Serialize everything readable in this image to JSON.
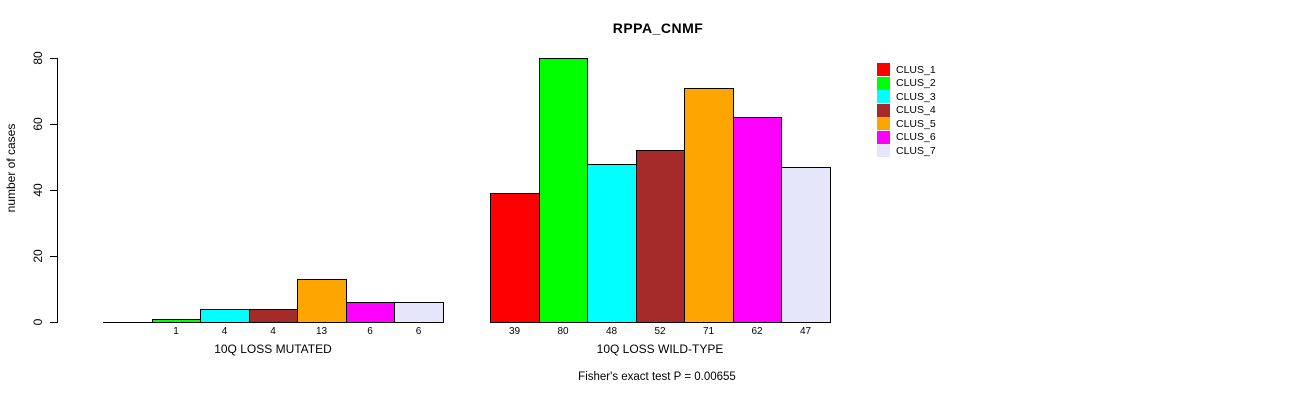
{
  "chart_data": {
    "type": "bar",
    "title": "RPPA_CNMF",
    "ylabel": "number of cases",
    "xlabel": "",
    "ylim": [
      0,
      80
    ],
    "yticks": [
      0,
      20,
      40,
      60,
      80
    ],
    "grid": false,
    "legend_position": "right-outside",
    "legend": [
      {
        "label": "CLUS_1",
        "color": "#ff0000"
      },
      {
        "label": "CLUS_2",
        "color": "#00ff00"
      },
      {
        "label": "CLUS_3",
        "color": "#00ffff"
      },
      {
        "label": "CLUS_4",
        "color": "#a52a2a"
      },
      {
        "label": "CLUS_5",
        "color": "#ffa500"
      },
      {
        "label": "CLUS_6",
        "color": "#ff00ff"
      },
      {
        "label": "CLUS_7",
        "color": "#e6e6fa"
      }
    ],
    "series_note": "each group shows one bar per cluster CLUS_1..CLUS_7",
    "groups": [
      {
        "label": "10Q LOSS MUTATED",
        "values": [
          0,
          1,
          4,
          4,
          13,
          6,
          6
        ],
        "bar_labels": [
          "",
          "1",
          "4",
          "4",
          "13",
          "6",
          "6"
        ]
      },
      {
        "label": "10Q LOSS WILD-TYPE",
        "values": [
          39,
          80,
          48,
          52,
          71,
          62,
          47
        ],
        "bar_labels": [
          "39",
          "80",
          "48",
          "52",
          "71",
          "62",
          "47"
        ]
      }
    ],
    "annotation": "Fisher's exact test P = 0.00655"
  }
}
